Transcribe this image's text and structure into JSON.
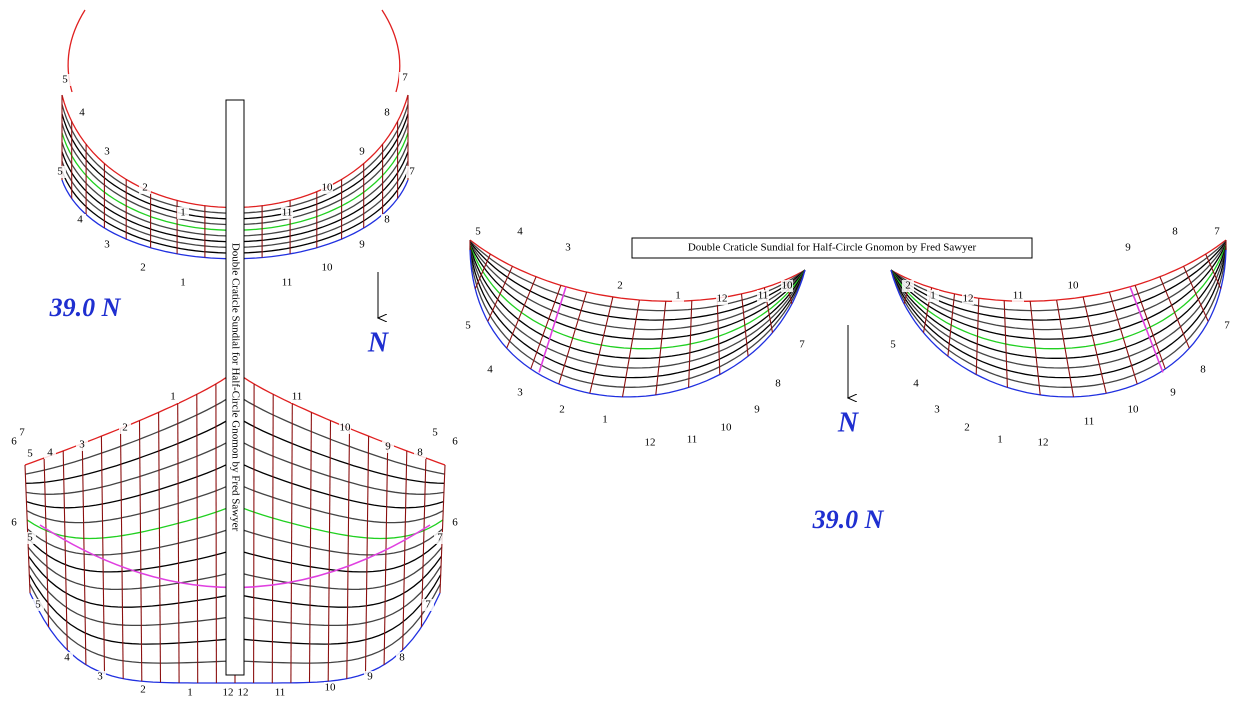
{
  "left_dial": {
    "title": "Double Craticle Sundial for Half-Circle Gnomon by Fred Sawyer",
    "latitude": "39.0 N",
    "north": "N",
    "upper_top_labels": [
      "5",
      "4",
      "3",
      "2",
      "1",
      "11",
      "10",
      "9",
      "8",
      "7"
    ],
    "upper_bottom_labels": [
      "5",
      "4",
      "3",
      "2",
      "1",
      "11",
      "10",
      "9",
      "8",
      "7"
    ],
    "lower_top_labels": [
      "7",
      "6",
      "5",
      "4",
      "3",
      "2",
      "1",
      "11",
      "10",
      "9",
      "8",
      "5",
      "6"
    ],
    "lower_bottom_labels": [
      "6",
      "5",
      "5",
      "4",
      "3",
      "2",
      "1",
      "12",
      "12",
      "11",
      "10",
      "9",
      "8",
      "7",
      "7",
      "6"
    ]
  },
  "right_dial": {
    "title": "Double Craticle Sundial for Half-Circle Gnomon by Fred Sawyer",
    "latitude": "39.0 N",
    "north": "N",
    "west_labels": [
      "5",
      "4",
      "3",
      "2",
      "1",
      "12",
      "11",
      "10",
      "7",
      "8",
      "9",
      "10",
      "11",
      "12",
      "1",
      "2",
      "3",
      "4",
      "5"
    ],
    "east_labels": [
      "2",
      "1",
      "12",
      "11",
      "10",
      "9",
      "8",
      "7",
      "7",
      "8",
      "9",
      "10",
      "11",
      "12",
      "1",
      "2",
      "3",
      "4",
      "5"
    ]
  }
}
